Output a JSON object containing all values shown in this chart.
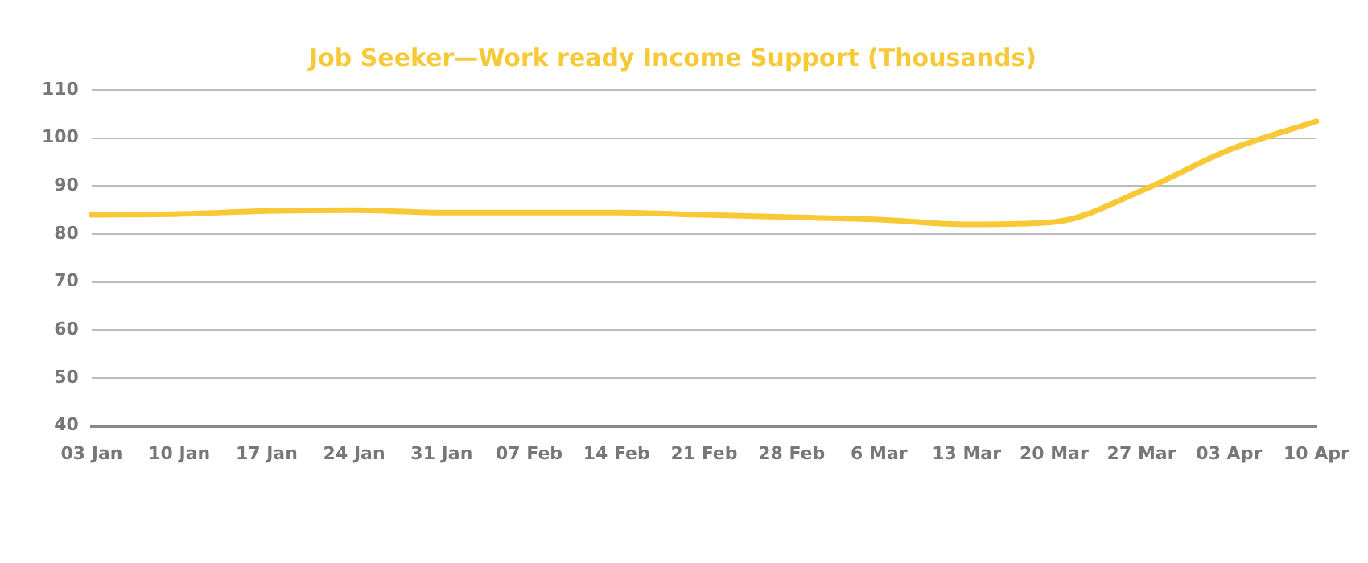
{
  "chart_data": {
    "type": "line",
    "title": "Job Seeker—Work ready Income Support (Thousands)",
    "categories": [
      "03 Jan",
      "10 Jan",
      "17 Jan",
      "24 Jan",
      "31 Jan",
      "07 Feb",
      "14 Feb",
      "21 Feb",
      "28 Feb",
      "6 Mar",
      "13 Mar",
      "20 Mar",
      "27 Mar",
      "03 Apr",
      "10 Apr"
    ],
    "series": [
      {
        "color": "#f7c936",
        "values": [
          84,
          84.2,
          84.8,
          85,
          84.5,
          84.5,
          84.5,
          84,
          83.5,
          83,
          82,
          82.5,
          89,
          97.5,
          103.5
        ]
      }
    ],
    "ylim": [
      40,
      110
    ],
    "yticks": [
      40,
      50,
      60,
      70,
      80,
      90,
      100,
      110
    ],
    "grid": "y",
    "legend": false,
    "marker": "none",
    "line_style": "solid"
  }
}
